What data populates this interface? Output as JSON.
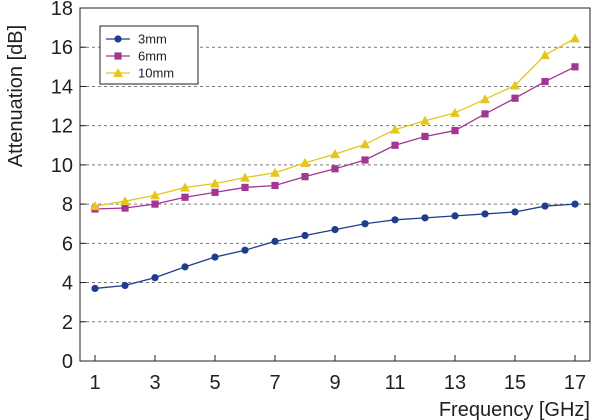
{
  "chart_data": {
    "type": "line",
    "title": "",
    "xlabel": "Frequency [GHz]",
    "ylabel": "Attenuation [dB]",
    "xlim": [
      0.5,
      17.5
    ],
    "ylim": [
      0,
      18
    ],
    "x_ticks": [
      "1",
      "3",
      "5",
      "7",
      "9",
      "11",
      "13",
      "15",
      "17"
    ],
    "y_ticks": [
      "0",
      "2",
      "4",
      "6",
      "8",
      "10",
      "12",
      "14",
      "16",
      "18"
    ],
    "grid": "horizontal-dashed",
    "legend_position": "top-left",
    "x": [
      1,
      2,
      3,
      4,
      5,
      6,
      7,
      8,
      9,
      10,
      11,
      12,
      13,
      14,
      15,
      16,
      17
    ],
    "series": [
      {
        "name": "3mm",
        "color": "#1f3d8c",
        "marker": "circle",
        "values": [
          3.7,
          3.85,
          4.25,
          4.8,
          5.3,
          5.65,
          6.1,
          6.4,
          6.7,
          7.0,
          7.2,
          7.3,
          7.4,
          7.5,
          7.6,
          7.9,
          8.0
        ]
      },
      {
        "name": "6mm",
        "color": "#a33593",
        "marker": "square",
        "values": [
          7.75,
          7.8,
          8.0,
          8.35,
          8.6,
          8.85,
          8.95,
          9.4,
          9.8,
          10.25,
          11.0,
          11.45,
          11.75,
          12.6,
          13.4,
          14.25,
          15.0
        ]
      },
      {
        "name": "10mm",
        "color": "#e6c619",
        "marker": "triangle",
        "values": [
          7.9,
          8.15,
          8.45,
          8.85,
          9.05,
          9.35,
          9.6,
          10.1,
          10.55,
          11.05,
          11.8,
          12.25,
          12.65,
          13.35,
          14.05,
          15.6,
          16.45
        ]
      }
    ]
  }
}
